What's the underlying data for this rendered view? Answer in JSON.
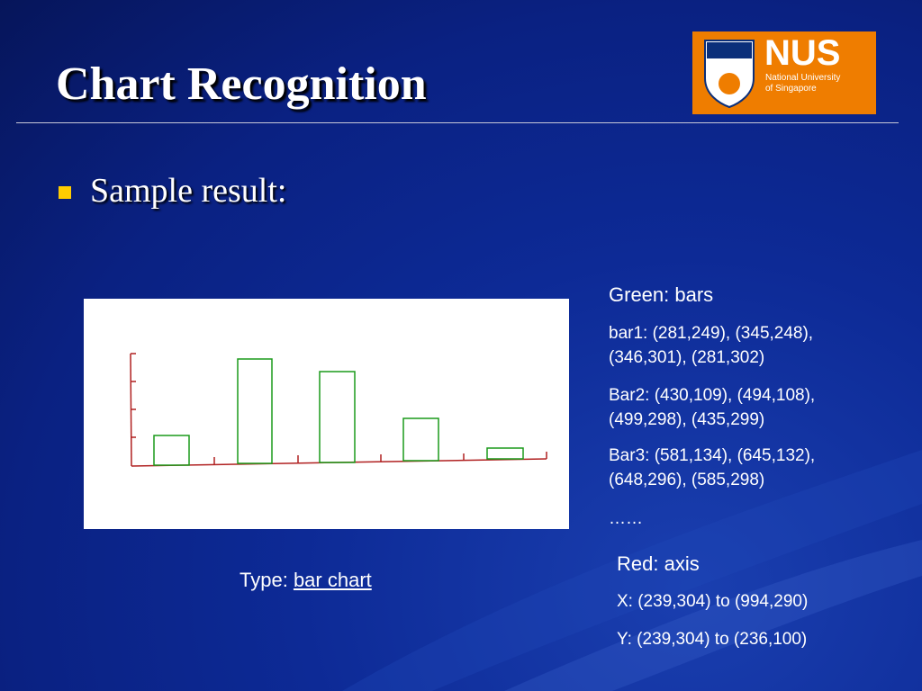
{
  "header": {
    "title": "Chart Recognition",
    "logo": {
      "name": "NUS",
      "line1": "National University",
      "line2": "of Singapore"
    }
  },
  "bullets": [
    "Sample result:"
  ],
  "figure": {
    "caption_prefix": "Type:",
    "caption_link": "bar chart"
  },
  "notes": {
    "green": {
      "heading": "Green: bars",
      "lines": [
        "bar1: (281,249), (345,248),",
        "(346,301), (281,302)",
        "Bar2: (430,109), (494,108),",
        "(499,298), (435,299)",
        "Bar3: (581,134), (645,132),",
        "(648,296), (585,298)",
        "……"
      ]
    },
    "red": {
      "heading": "Red: axis",
      "lines": [
        "X: (239,304) to (994,290)",
        "Y: (239,304) to (236,100)"
      ]
    }
  }
}
